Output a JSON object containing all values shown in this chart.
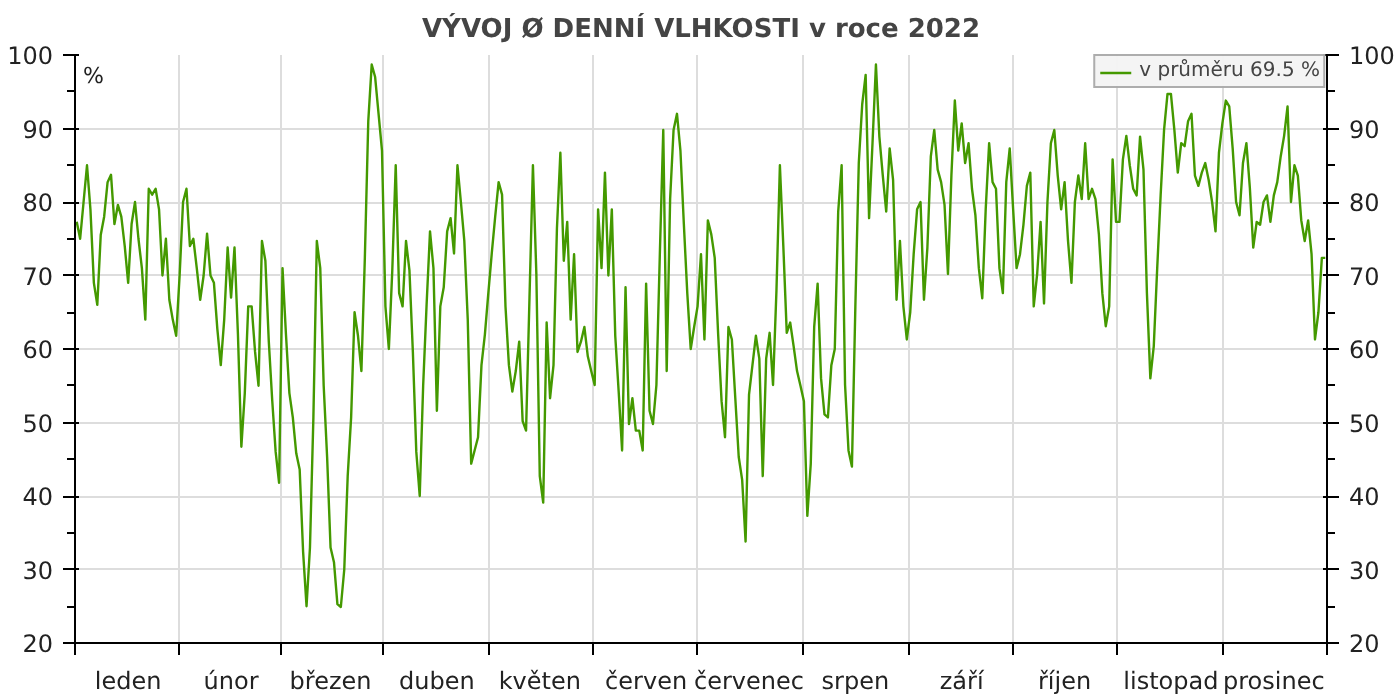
{
  "chart_data": {
    "type": "line",
    "title": "VÝVOJ Ø DENNÍ VLHKOSTI v roce 2022",
    "ylabel": "%",
    "categories": [
      null,
      null,
      null,
      null,
      null,
      null,
      null,
      null,
      null,
      null,
      null,
      null,
      null,
      null,
      null,
      "leden",
      null,
      null,
      null,
      null,
      null,
      null,
      null,
      null,
      null,
      null,
      null,
      null,
      null,
      null,
      null,
      null,
      null,
      null,
      null,
      null,
      null,
      null,
      null,
      null,
      null,
      null,
      null,
      null,
      null,
      "únor",
      null,
      null,
      null,
      null,
      null,
      null,
      null,
      null,
      null,
      null,
      null,
      null,
      null,
      null,
      null,
      null,
      null,
      null,
      null,
      null,
      null,
      null,
      null,
      null,
      null,
      null,
      null,
      null,
      "březen",
      null,
      null,
      null,
      null,
      null,
      null,
      null,
      null,
      null,
      null,
      null,
      null,
      null,
      null,
      null,
      null,
      null,
      null,
      null,
      null,
      null,
      null,
      null,
      null,
      null,
      null,
      null,
      null,
      null,
      null,
      "duben",
      null,
      null,
      null,
      null,
      null,
      null,
      null,
      null,
      null,
      null,
      null,
      null,
      null,
      null,
      null,
      null,
      null,
      null,
      null,
      null,
      null,
      null,
      null,
      null,
      null,
      null,
      null,
      null,
      null,
      "květen",
      null,
      null,
      null,
      null,
      null,
      null,
      null,
      null,
      null,
      null,
      null,
      null,
      null,
      null,
      null,
      null,
      null,
      null,
      null,
      null,
      null,
      null,
      null,
      null,
      null,
      null,
      null,
      null,
      null,
      null,
      "červen",
      null,
      null,
      null,
      null,
      null,
      null,
      null,
      null,
      null,
      null,
      null,
      null,
      null,
      null,
      null,
      null,
      null,
      null,
      null,
      null,
      null,
      null,
      null,
      null,
      null,
      null,
      null,
      null,
      null,
      "červenec",
      null,
      null,
      null,
      null,
      null,
      null,
      null,
      null,
      null,
      null,
      null,
      null,
      null,
      null,
      null,
      null,
      null,
      null,
      null,
      null,
      null,
      null,
      null,
      null,
      null,
      null,
      null,
      null,
      null,
      null,
      "srpen",
      null,
      null,
      null,
      null,
      null,
      null,
      null,
      null,
      null,
      null,
      null,
      null,
      null,
      null,
      null,
      null,
      null,
      null,
      null,
      null,
      null,
      null,
      null,
      null,
      null,
      null,
      null,
      null,
      null,
      null,
      "září",
      null,
      null,
      null,
      null,
      null,
      null,
      null,
      null,
      null,
      null,
      null,
      null,
      null,
      null,
      null,
      null,
      null,
      null,
      null,
      null,
      null,
      null,
      null,
      null,
      null,
      null,
      null,
      null,
      null,
      "říjen",
      null,
      null,
      null,
      null,
      null,
      null,
      null,
      null,
      null,
      null,
      null,
      null,
      null,
      null,
      null,
      null,
      null,
      null,
      null,
      null,
      null,
      null,
      null,
      null,
      null,
      null,
      null,
      null,
      null,
      null,
      "listopad",
      null,
      null,
      null,
      null,
      null,
      null,
      null,
      null,
      null,
      null,
      null,
      null,
      null,
      null,
      null,
      null,
      null,
      null,
      null,
      null,
      null,
      null,
      null,
      null,
      null,
      null,
      null,
      null,
      null,
      "prosinec",
      null,
      null,
      null,
      null,
      null,
      null,
      null,
      null,
      null,
      null,
      null,
      null,
      null,
      null,
      null
    ],
    "ylim": [
      20,
      100
    ],
    "y2lim": [
      20,
      100
    ],
    "yticks": [
      20,
      30,
      40,
      50,
      60,
      70,
      80,
      90,
      100
    ],
    "y2ticks": [
      20,
      30,
      40,
      50,
      60,
      70,
      80,
      90,
      100
    ],
    "grid": true,
    "legend": "top right",
    "series": [
      {
        "name": "v průměru 69.5 %",
        "color": "#449900",
        "values": [
          77.3,
          75,
          80,
          85,
          79,
          69,
          66,
          75.5,
          78,
          82.7,
          83.7,
          77,
          79.6,
          78,
          74,
          69,
          77,
          80,
          75,
          71,
          64,
          81.8,
          81,
          81.8,
          79,
          70,
          75,
          66.7,
          64,
          61.8,
          70,
          80,
          81.8,
          74,
          75,
          71,
          66.7,
          70,
          75.7,
          70,
          69,
          62.7,
          57.8,
          64,
          73.8,
          67,
          73.8,
          62,
          46.7,
          54,
          65.8,
          65.8,
          59.6,
          55,
          74.7,
          72,
          61,
          53,
          46,
          41.8,
          71,
          62,
          54,
          50.7,
          45.8,
          43.6,
          32.4,
          25,
          33,
          50.7,
          74.7,
          71,
          55,
          45.3,
          33,
          31,
          25.3,
          24.9,
          30,
          42.7,
          50.7,
          65,
          61.8,
          57,
          72.4,
          91,
          98.7,
          97,
          92,
          87,
          65.8,
          60,
          70.7,
          85,
          67.6,
          65.8,
          74.7,
          70.7,
          59.6,
          46,
          40,
          55,
          66,
          76,
          71,
          51.6,
          65.8,
          68.4,
          76,
          77.8,
          73,
          85,
          80,
          74.7,
          64,
          44.4,
          46.2,
          48,
          57.8,
          62,
          67.6,
          73,
          78,
          82.7,
          81,
          65.8,
          57.8,
          54.2,
          57,
          61,
          50.2,
          48.9,
          67,
          85,
          70.2,
          42.7,
          39.1,
          63.6,
          53.3,
          57.8,
          76.4,
          86.7,
          72,
          77.3,
          64,
          72.9,
          59.6,
          61,
          63,
          59,
          57,
          55.1,
          79,
          71,
          84,
          70,
          79,
          61.8,
          54.2,
          46.2,
          68.4,
          49.8,
          53.3,
          48.9,
          48.9,
          46.2,
          68.9,
          51.6,
          49.8,
          55.1,
          72.9,
          89.8,
          57,
          80.4,
          89.8,
          92,
          87,
          77,
          67.6,
          60,
          63,
          65.8,
          72.9,
          61.3,
          77.5,
          75.6,
          72.4,
          62,
          52.9,
          48,
          63,
          61.3,
          53.3,
          45.3,
          42.2,
          33.8,
          53.8,
          57.8,
          61.8,
          58.7,
          42.7,
          58.7,
          62.2,
          55.1,
          68,
          85,
          74,
          62.2,
          63.6,
          60.4,
          57,
          55,
          52.9,
          37.3,
          44.4,
          63,
          68.9,
          56,
          51.1,
          50.7,
          57.8,
          60,
          78.7,
          85,
          55.1,
          46.2,
          44,
          65.8,
          85.3,
          93.3,
          97.3,
          77.8,
          88,
          98.7,
          88.9,
          83.6,
          78.7,
          87.3,
          83,
          66.7,
          74.7,
          65.8,
          61.3,
          65,
          72.9,
          79,
          80,
          66.7,
          73.8,
          86.2,
          89.8,
          84.4,
          82.7,
          79.6,
          70.2,
          83.6,
          93.8,
          87,
          90.7,
          85.3,
          88,
          81.8,
          78.2,
          71,
          66.9,
          79,
          88,
          82.7,
          81.8,
          71,
          67.6,
          82.7,
          87.3,
          79,
          71,
          72.9,
          76.9,
          82.2,
          84,
          65.8,
          70.2,
          77.3,
          66.2,
          80,
          88,
          89.8,
          83.6,
          79,
          82.7,
          74.7,
          69,
          80,
          83.6,
          80.4,
          88,
          80.4,
          81.8,
          80.4,
          75.6,
          67.6,
          63.1,
          65.8,
          85.8,
          77.3,
          77.3,
          85.8,
          89,
          85,
          81.8,
          80.9,
          88.9,
          84.4,
          67.6,
          56,
          60.4,
          71,
          80.9,
          89.8,
          94.7,
          94.7,
          89.8,
          84,
          88,
          87.6,
          91,
          92,
          83.6,
          82.2,
          84,
          85.3,
          83,
          80,
          76,
          86.7,
          90.7,
          93.8,
          93,
          87.3,
          80,
          78.2,
          85.3,
          88,
          82,
          73.8,
          77.3,
          76.9,
          80,
          80.9,
          77.3,
          80.9,
          82.7,
          86.2,
          89,
          93,
          80,
          85,
          83.6,
          77.5,
          74.7,
          77.5,
          72.9,
          61.3,
          65,
          72.4,
          72.4
        ]
      }
    ]
  }
}
